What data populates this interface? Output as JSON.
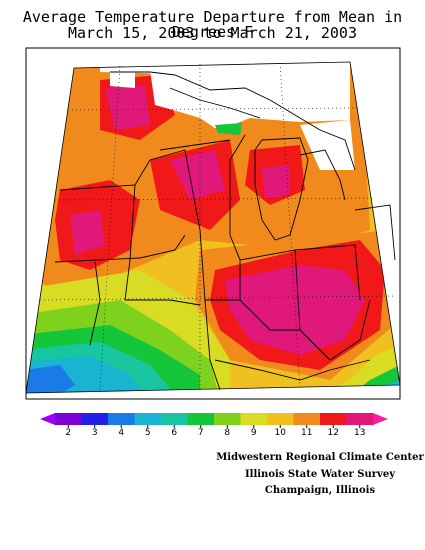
{
  "title": {
    "line1": "Average Temperature Departure from Mean in Degrees F",
    "line2": "March 15, 2003 to March 21, 2003"
  },
  "legend": {
    "ticks": [
      "2",
      "3",
      "4",
      "5",
      "6",
      "7",
      "8",
      "9",
      "10",
      "11",
      "12",
      "13"
    ],
    "colors": [
      "#7a00d6",
      "#2020e6",
      "#1a7ae6",
      "#18b4d0",
      "#18c6a0",
      "#16c63a",
      "#7ed21e",
      "#d8dc22",
      "#f0c020",
      "#f08a1c",
      "#f01818",
      "#e0187a"
    ],
    "low_end_color": "#9a00ff",
    "high_end_color": "#ff1aa0"
  },
  "credits": {
    "line1": "Midwestern Regional Climate Center",
    "line2": "Illinois State Water Survey",
    "line3": "Champaign, Illinois"
  }
}
